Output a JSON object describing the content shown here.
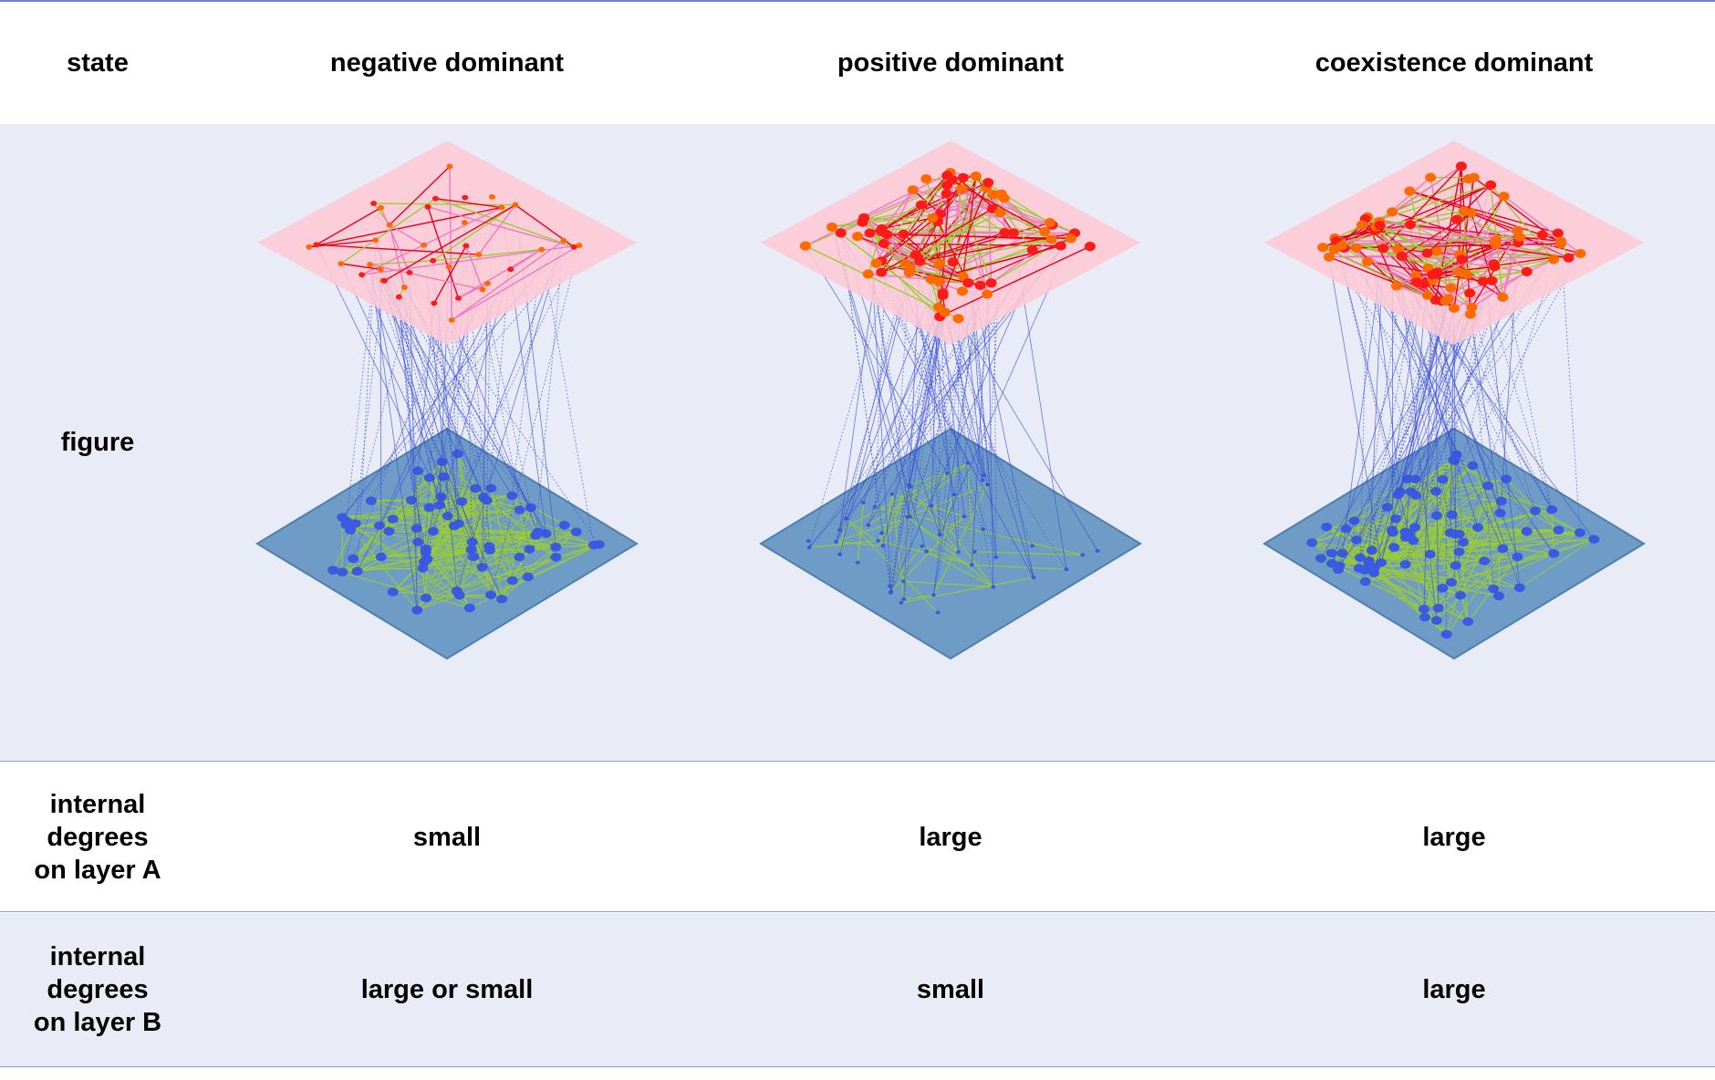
{
  "header": {
    "state_label": "state",
    "columns": [
      "negative dominant",
      "positive dominant",
      "coexistence dominant"
    ]
  },
  "rows": {
    "figure_label": "figure",
    "layer_a_label": "internal\ndegrees\non layer A",
    "layer_b_label": "internal\ndegrees\non layer B"
  },
  "layer_a_values": [
    "small",
    "large",
    "large"
  ],
  "layer_b_values": [
    "large or small",
    "small",
    "large"
  ],
  "colors": {
    "layer_a_plane": "#ffc9d4",
    "layer_b_plane": "#6f9cc6",
    "interlayer_edge": "#3a4fd6",
    "layer_a_node_red": "#ff1a1a",
    "layer_a_node_orange": "#ff6a00",
    "layer_a_edge_red": "#e8001c",
    "layer_a_edge_pink": "#f07ac0",
    "green_edge": "#9acd32",
    "layer_b_node": "#3a5be0",
    "row_shade": "#e9ebf7",
    "rule": "#6d82d2"
  }
}
